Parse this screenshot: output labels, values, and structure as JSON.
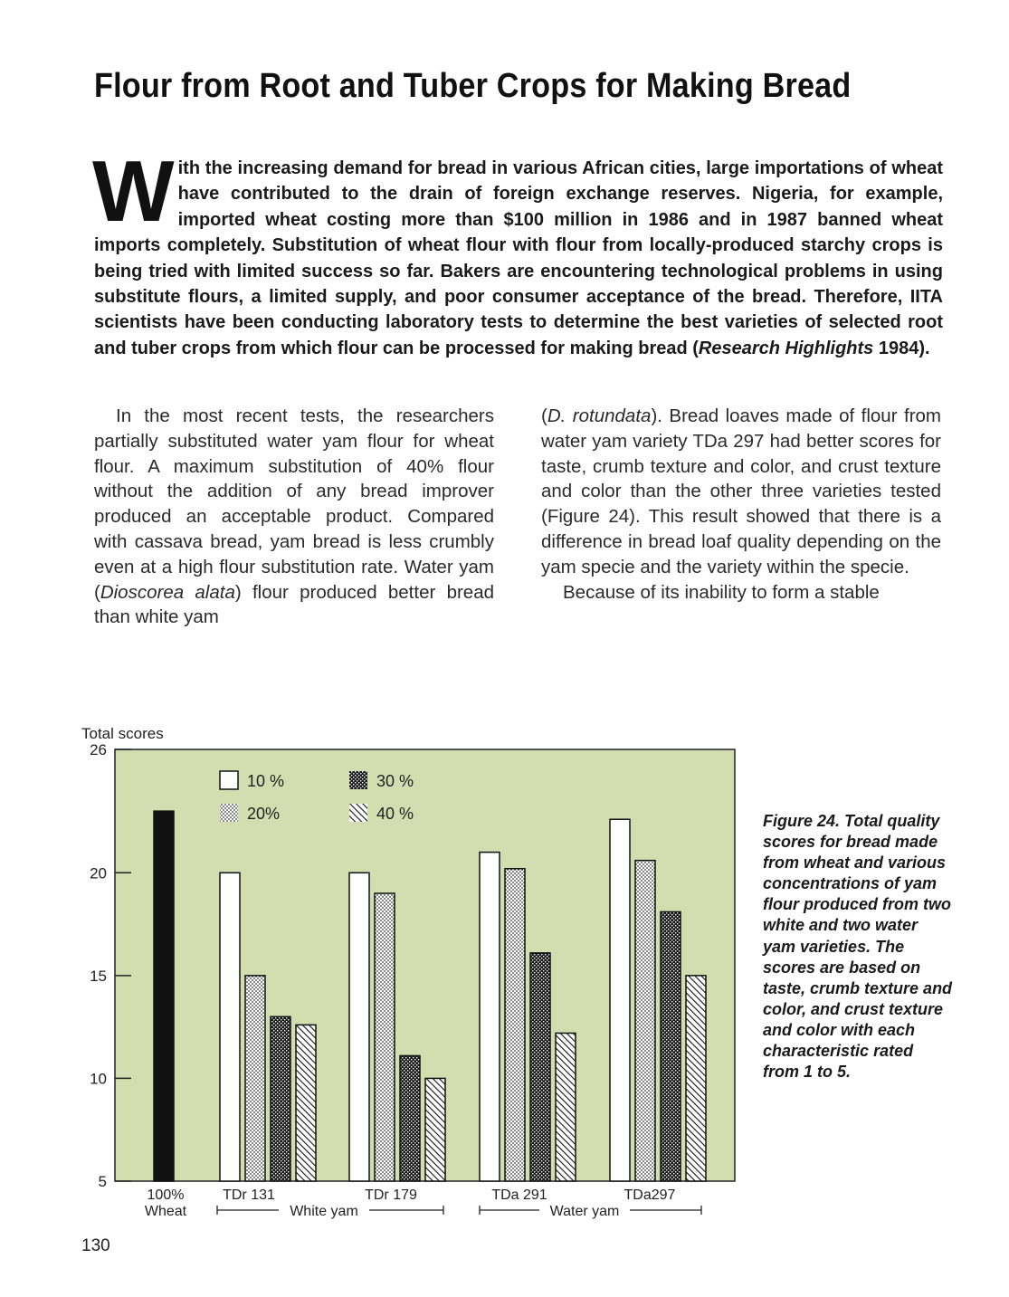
{
  "title": "Flour from Root and Tuber Crops for Making Bread",
  "lead": {
    "drop_cap": "W",
    "text": "ith the increasing demand for bread in various African cities, large importations of wheat have contributed to the drain of foreign exchange reserves. Nigeria, for example, imported wheat costing more than $100 million in 1986 and in 1987 banned wheat imports completely. Substitution of wheat flour with flour from locally-produced starchy crops is being tried with limited success so far. Bakers are encountering technological problems in using substitute flours, a limited supply, and poor consumer acceptance of the bread. Therefore, IITA scientists have been conducting laboratory tests to determine the best varieties of selected root and tuber crops from which flour can be processed for making bread (",
    "italic_ref": "Research Highlights",
    "tail": " 1984)."
  },
  "body": {
    "left_col": {
      "p1_a": "In the most recent tests, the researchers partially substituted water yam flour for wheat flour. A maximum substitution of 40% flour without the addition of any bread improver produced an acceptable product. Compared with cassava bread, yam bread is less crumbly even at a high flour substitution rate. Water yam (",
      "p1_italic": "Dioscorea alata",
      "p1_b": ") flour produced better bread than white yam"
    },
    "right_col": {
      "p1_open": "(",
      "p1_italic": "D. rotundata",
      "p1_rest": "). Bread loaves made of flour from water yam variety TDa 297 had better scores for taste, crumb texture and color, and crust texture and color than the other three varieties tested (Figure 24). This result showed that there is a difference in bread loaf quality depending on the yam specie and the variety within the specie.",
      "p2": "Because of its inability to form a stable"
    }
  },
  "caption": "Figure 24. Total quality scores for bread made from wheat and various concentrations of yam flour produced from two white and two water yam varieties. The scores are based on taste, crumb texture and color, and crust texture and color with each characteristic rated from 1 to 5.",
  "page_number": "130",
  "chart_data": {
    "type": "bar",
    "ylabel": "Total scores",
    "ylim": [
      5,
      26
    ],
    "y_ticks": [
      "26",
      "20",
      "15",
      "10",
      "5"
    ],
    "legend": [
      {
        "label": "10 %",
        "pattern": "open"
      },
      {
        "label": "20%",
        "pattern": "stipple"
      },
      {
        "label": "30 %",
        "pattern": "crosshatch"
      },
      {
        "label": "40 %",
        "pattern": "diagonal"
      }
    ],
    "legend_placement": "top-center",
    "background_color": "#d3ddb0",
    "categories": [
      {
        "label": "100%",
        "sublabel": "Wheat",
        "values": [
          23
        ]
      },
      {
        "label": "TDr 131",
        "values": [
          20,
          15,
          13,
          12.6
        ]
      },
      {
        "label": "TDr 179",
        "values": [
          20,
          19,
          11.1,
          10
        ]
      },
      {
        "label": "TDa 291",
        "values": [
          21,
          20.2,
          16.1,
          12.2
        ]
      },
      {
        "label": "TDa297",
        "values": [
          22.6,
          20.6,
          18.1,
          15
        ]
      }
    ],
    "group_labels": [
      "White yam",
      "Water yam"
    ],
    "colors": {
      "wheat": "#111111",
      "bar_fill": "#ffffff",
      "stroke": "#111111"
    }
  }
}
